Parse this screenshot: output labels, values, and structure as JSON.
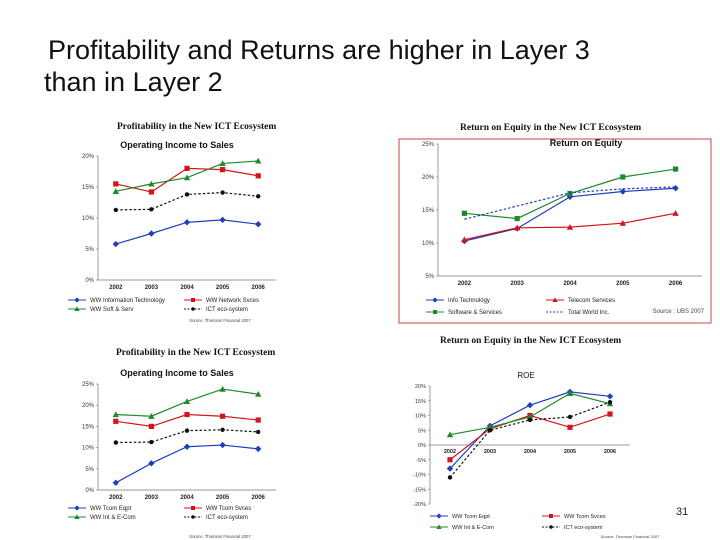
{
  "slide": {
    "title_line1": "Profitability and Returns are higher in Layer 3",
    "title_line2": "than in Layer 2",
    "page_number": "31"
  },
  "chart_data": [
    {
      "type": "line",
      "figure_title": "Profitability in the New ICT Ecosystem",
      "title": "Operating Income to Sales",
      "categories": [
        "2002",
        "2003",
        "2004",
        "2005",
        "2006"
      ],
      "ylim": [
        0,
        20
      ],
      "yticks": [
        "0%",
        "5%",
        "10%",
        "15%",
        "20%"
      ],
      "series": [
        {
          "name": "WW Information Technology",
          "values": [
            5.8,
            7.5,
            9.3,
            9.7,
            9.0
          ],
          "color": "#1f3fbf",
          "marker": "diamond",
          "dash": false
        },
        {
          "name": "WW Network Svces",
          "values": [
            15.5,
            14.2,
            18.0,
            17.8,
            16.8
          ],
          "color": "#d4141c",
          "marker": "square",
          "dash": false
        },
        {
          "name": "WW Soft & Serv",
          "values": [
            14.3,
            15.5,
            16.5,
            18.8,
            19.2
          ],
          "color": "#1f8a2a",
          "marker": "triangle",
          "dash": false
        },
        {
          "name": "ICT eco-system",
          "values": [
            11.3,
            11.4,
            13.8,
            14.1,
            13.5
          ],
          "color": "#111111",
          "marker": "circle",
          "dash": true
        }
      ],
      "source": "Source: Thomson Financial 2007"
    },
    {
      "type": "line",
      "figure_title": "Return on Equity in the New ICT Ecosystem",
      "title": "Return on Equity",
      "categories": [
        "2002",
        "2003",
        "2004",
        "2005",
        "2006"
      ],
      "ylim": [
        5,
        25
      ],
      "yticks": [
        "5%",
        "10%",
        "15%",
        "20%",
        "25%"
      ],
      "series": [
        {
          "name": "Info Technology",
          "values": [
            10.3,
            12.2,
            17.0,
            17.8,
            18.3
          ],
          "color": "#1f3fbf",
          "marker": "diamond",
          "dash": false
        },
        {
          "name": "Telecom Services",
          "values": [
            10.5,
            12.3,
            12.4,
            13.0,
            14.5
          ],
          "color": "#d4141c",
          "marker": "triangle",
          "dash": false
        },
        {
          "name": "Software & Services",
          "values": [
            14.5,
            13.7,
            17.5,
            20.0,
            21.2
          ],
          "color": "#1f8a2a",
          "marker": "square",
          "dash": false
        },
        {
          "name": "Total World Inc.",
          "values": [
            13.6,
            15.6,
            17.6,
            18.2,
            18.5
          ],
          "color": "#1f3fbf",
          "marker": "none",
          "dash": true
        }
      ],
      "source": "Source : UBS 2007"
    },
    {
      "type": "line",
      "figure_title": "Profitability in the New ICT Ecosystem",
      "title": "Operating Income to Sales",
      "categories": [
        "2002",
        "2003",
        "2004",
        "2005",
        "2006"
      ],
      "ylim": [
        0,
        25
      ],
      "yticks": [
        "0%",
        "5%",
        "10%",
        "15%",
        "20%",
        "25%"
      ],
      "series": [
        {
          "name": "WW Tcom Eqpt",
          "values": [
            1.7,
            6.3,
            10.2,
            10.6,
            9.7
          ],
          "color": "#1f3fbf",
          "marker": "diamond",
          "dash": false
        },
        {
          "name": "WW Tcom Svces",
          "values": [
            16.2,
            15.0,
            17.8,
            17.4,
            16.5
          ],
          "color": "#d4141c",
          "marker": "square",
          "dash": false
        },
        {
          "name": "WW Int & E-Com",
          "values": [
            17.8,
            17.4,
            20.9,
            23.8,
            22.6
          ],
          "color": "#1f8a2a",
          "marker": "triangle",
          "dash": false
        },
        {
          "name": "ICT eco-system",
          "values": [
            11.2,
            11.3,
            14.0,
            14.2,
            13.7
          ],
          "color": "#111111",
          "marker": "circle",
          "dash": true
        }
      ],
      "source": "Source: Thomson Financial 2007"
    },
    {
      "type": "line",
      "figure_title": "Return on Equity in the New ICT Ecosystem",
      "title": "ROE",
      "categories": [
        "2002",
        "2003",
        "2004",
        "2005",
        "2006"
      ],
      "ylim": [
        -20,
        20
      ],
      "yticks": [
        "-20%",
        "-15%",
        "-10%",
        "-5%",
        "0%",
        "5%",
        "10%",
        "15%",
        "20%"
      ],
      "series": [
        {
          "name": "WW Tcom Eqpt",
          "values": [
            -8.0,
            6.5,
            13.5,
            18.0,
            16.5
          ],
          "color": "#1f3fbf",
          "marker": "diamond",
          "dash": false
        },
        {
          "name": "WW Tcom Svces",
          "values": [
            -5.0,
            5.5,
            10.0,
            6.0,
            10.5
          ],
          "color": "#d4141c",
          "marker": "square",
          "dash": false
        },
        {
          "name": "WW Int & E-Com",
          "values": [
            3.5,
            6.0,
            9.5,
            17.5,
            14.0
          ],
          "color": "#1f8a2a",
          "marker": "triangle",
          "dash": false
        },
        {
          "name": "ICT eco-system",
          "values": [
            -11.0,
            5.0,
            8.5,
            9.5,
            14.5
          ],
          "color": "#111111",
          "marker": "circle",
          "dash": true
        }
      ],
      "source": "Source: Thomson Financial 2007"
    }
  ]
}
